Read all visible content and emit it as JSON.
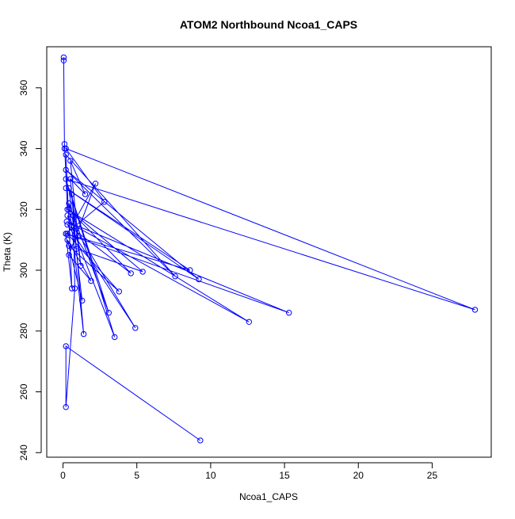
{
  "chart_data": {
    "type": "scatter",
    "title": "ATOM2 Northbound Ncoa1_CAPS",
    "xlabel": "Ncoa1_CAPS",
    "ylabel": "Theta (K)",
    "xlim": [
      -1.1,
      29.0
    ],
    "ylim": [
      238.5,
      373.5
    ],
    "xticks": [
      0,
      5,
      10,
      15,
      20,
      25
    ],
    "yticks": [
      240,
      260,
      280,
      300,
      320,
      340,
      360
    ],
    "xtick_labels": [
      "0",
      "5",
      "10",
      "15",
      "20",
      "25"
    ],
    "ytick_labels": [
      "240",
      "260",
      "280",
      "300",
      "320",
      "340",
      "360"
    ],
    "series": [
      {
        "color": "#0000ff",
        "marker": "open-circle",
        "connected": true,
        "x": [
          0.05,
          0.05,
          0.1,
          0.1,
          0.3,
          12.6,
          0.25,
          15.3,
          0.2,
          0.6,
          0.2,
          7.6,
          0.2,
          9.2,
          0.2,
          8.6,
          0.2,
          2.8,
          0.2,
          27.9,
          0.2,
          3.5,
          0.3,
          4.9,
          0.3,
          4.6,
          0.4,
          5.4,
          0.4,
          3.8,
          0.3,
          2.2,
          0.4,
          1.9,
          0.3,
          1.3,
          0.4,
          3.1,
          0.4,
          1.4,
          0.5,
          1.5,
          0.5,
          1.2,
          0.6,
          0.9,
          0.7,
          0.8,
          0.2,
          0.2,
          9.3
        ],
        "y": [
          370.0,
          369.0,
          340.0,
          341.5,
          320.0,
          283.0,
          316.0,
          286.0,
          312.0,
          294.0,
          338.0,
          298.0,
          333.0,
          297.0,
          327.0,
          300.0,
          312.0,
          322.5,
          340.0,
          287.0,
          330.0,
          278.0,
          318.0,
          281.0,
          315.0,
          299.0,
          320.0,
          299.5,
          308.0,
          293.0,
          312.0,
          328.5,
          305.0,
          296.5,
          310.0,
          290.0,
          327.0,
          286.0,
          322.0,
          279.0,
          330.0,
          325.0,
          336.0,
          301.5,
          325.0,
          307.0,
          318.0,
          294.0,
          255.0,
          275.0,
          244.0
        ]
      }
    ]
  }
}
